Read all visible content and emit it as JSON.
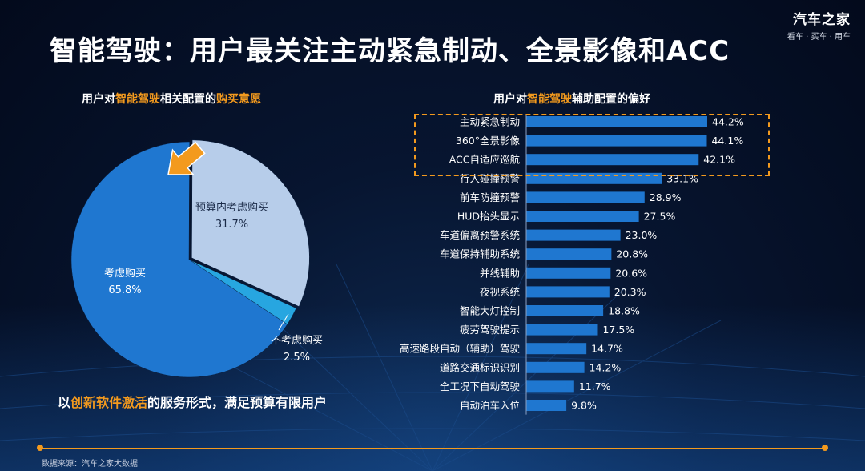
{
  "brand": {
    "name": "汽车之家",
    "slogan": "看车 · 买车 · 用车"
  },
  "title": "智能驾驶：用户最关注主动紧急制动、全景影像和ACC",
  "pie_title": {
    "part1": "用户对",
    "hl1": "智能驾驶",
    "part2": "相关配置的",
    "hl2": "购买意愿"
  },
  "bar_title": {
    "part1": "用户对",
    "hl1": "智能驾驶",
    "part2": "辅助配置的偏好"
  },
  "conclusion": {
    "part1": "以",
    "hl": "创新软件激活",
    "part2": "的服务形式，满足预算有限用户"
  },
  "source": "数据来源：汽车之家大数据",
  "colors": {
    "accent": "#f39a1e",
    "bar": "#1f77d0",
    "pie_main": "#1f77d0",
    "pie_light": "#b7cdea",
    "pie_small": "#27a6e0"
  },
  "chart_data": [
    {
      "type": "pie",
      "title": "用户对智能驾驶相关配置的购买意愿",
      "slices": [
        {
          "label": "预算内考虑购买",
          "value": 31.7,
          "display": "31.7%"
        },
        {
          "label": "不考虑购买",
          "value": 2.5,
          "display": "2.5%"
        },
        {
          "label": "考虑购买",
          "value": 65.8,
          "display": "65.8%"
        }
      ]
    },
    {
      "type": "bar",
      "orientation": "horizontal",
      "title": "用户对智能驾驶辅助配置的偏好",
      "xlim": [
        0,
        50
      ],
      "highlighted_top": 3,
      "categories": [
        "主动紧急制动",
        "360°全景影像",
        "ACC自适应巡航",
        "行人碰撞预警",
        "前车防撞预警",
        "HUD抬头显示",
        "车道偏离预警系统",
        "车道保持辅助系统",
        "并线辅助",
        "夜视系统",
        "智能大灯控制",
        "疲劳驾驶提示",
        "高速路段自动（辅助）驾驶",
        "道路交通标识识别",
        "全工况下自动驾驶",
        "自动泊车入位"
      ],
      "values": [
        44.2,
        44.1,
        42.1,
        33.1,
        28.9,
        27.5,
        23.0,
        20.8,
        20.6,
        20.3,
        18.8,
        17.5,
        14.7,
        14.2,
        11.7,
        9.8
      ],
      "value_labels": [
        "44.2%",
        "44.1%",
        "42.1%",
        "33.1%",
        "28.9%",
        "27.5%",
        "23.0%",
        "20.8%",
        "20.6%",
        "20.3%",
        "18.8%",
        "17.5%",
        "14.7%",
        "14.2%",
        "11.7%",
        "9.8%"
      ]
    }
  ]
}
